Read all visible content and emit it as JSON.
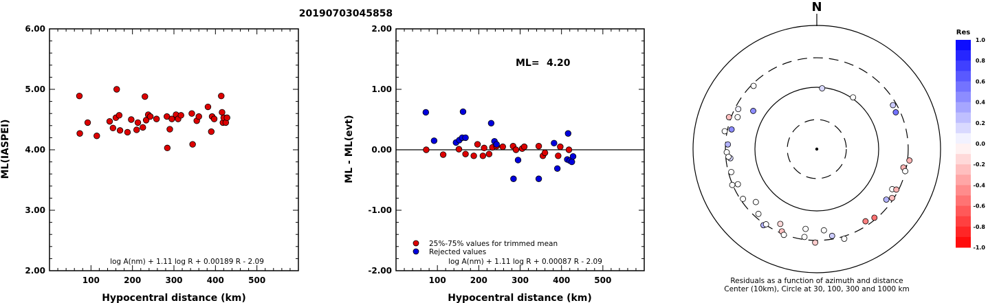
{
  "title": "20190703045858",
  "colors": {
    "red": "#dd0000",
    "blue": "#0000dd",
    "axis": "#000000"
  },
  "chart_data": [
    {
      "type": "scatter",
      "xlabel": "Hypocentral distance (km)",
      "ylabel": "ML(IASPEI)",
      "xlim": [
        0,
        600
      ],
      "ylim": [
        2.0,
        6.0
      ],
      "xticks": [
        "100",
        "200",
        "300",
        "400",
        "500"
      ],
      "yticks": [
        "2.00",
        "3.00",
        "4.00",
        "5.00",
        "6.00"
      ],
      "formula": "log A(nm) + 1.11 log R + 0.00189 R - 2.09",
      "series": [
        {
          "color": "#dd0000",
          "points": [
            [
              72,
              4.89
            ],
            [
              73,
              4.27
            ],
            [
              92,
              4.45
            ],
            [
              114,
              4.23
            ],
            [
              145,
              4.47
            ],
            [
              153,
              4.36
            ],
            [
              160,
              4.53
            ],
            [
              162,
              5.0
            ],
            [
              168,
              4.57
            ],
            [
              170,
              4.32
            ],
            [
              188,
              4.29
            ],
            [
              197,
              4.5
            ],
            [
              210,
              4.33
            ],
            [
              213,
              4.45
            ],
            [
              225,
              4.37
            ],
            [
              230,
              4.88
            ],
            [
              233,
              4.49
            ],
            [
              238,
              4.58
            ],
            [
              243,
              4.55
            ],
            [
              258,
              4.51
            ],
            [
              283,
              4.55
            ],
            [
              284,
              4.03
            ],
            [
              290,
              4.34
            ],
            [
              295,
              4.51
            ],
            [
              305,
              4.58
            ],
            [
              310,
              4.51
            ],
            [
              317,
              4.57
            ],
            [
              343,
              4.6
            ],
            [
              345,
              4.09
            ],
            [
              355,
              4.48
            ],
            [
              360,
              4.55
            ],
            [
              382,
              4.71
            ],
            [
              390,
              4.3
            ],
            [
              392,
              4.55
            ],
            [
              397,
              4.51
            ],
            [
              414,
              4.89
            ],
            [
              416,
              4.62
            ],
            [
              418,
              4.45
            ],
            [
              420,
              4.53
            ],
            [
              425,
              4.45
            ],
            [
              428,
              4.53
            ]
          ]
        }
      ]
    },
    {
      "type": "scatter",
      "xlabel": "Hypocentral distance (km)",
      "ylabel": "ML - ML(evt)",
      "xlim": [
        0,
        600
      ],
      "ylim": [
        -2.0,
        2.0
      ],
      "xticks": [
        "100",
        "200",
        "300",
        "400",
        "500"
      ],
      "yticks": [
        "-2.00",
        "-1.00",
        "0.00",
        "1.00",
        "2.00"
      ],
      "ml_label": "ML=",
      "ml_value": "4.20",
      "formula": "log A(nm) + 1.11 log R + 0.00087 R - 2.09",
      "legend": {
        "placement": "bottom-left",
        "entries": [
          {
            "label": "25%-75% values for trimmed mean",
            "color": "#dd0000"
          },
          {
            "label": "Rejected values",
            "color": "#0000dd"
          }
        ]
      },
      "series": [
        {
          "name": "25%-75% values for trimmed mean",
          "color": "#dd0000",
          "points": [
            [
              73,
              0.0
            ],
            [
              114,
              -0.08
            ],
            [
              152,
              0.01
            ],
            [
              168,
              -0.07
            ],
            [
              188,
              -0.1
            ],
            [
              197,
              0.09
            ],
            [
              210,
              -0.1
            ],
            [
              213,
              0.03
            ],
            [
              225,
              -0.07
            ],
            [
              233,
              0.04
            ],
            [
              243,
              0.06
            ],
            [
              258,
              0.05
            ],
            [
              283,
              0.06
            ],
            [
              290,
              0.0
            ],
            [
              305,
              0.02
            ],
            [
              310,
              0.05
            ],
            [
              345,
              0.06
            ],
            [
              355,
              -0.1
            ],
            [
              360,
              -0.05
            ],
            [
              392,
              -0.1
            ],
            [
              397,
              0.05
            ],
            [
              418,
              0.0
            ]
          ]
        },
        {
          "name": "Rejected values",
          "color": "#0000dd",
          "points": [
            [
              72,
              0.62
            ],
            [
              92,
              0.15
            ],
            [
              145,
              0.12
            ],
            [
              153,
              0.16
            ],
            [
              160,
              0.2
            ],
            [
              162,
              0.63
            ],
            [
              168,
              0.2
            ],
            [
              230,
              0.44
            ],
            [
              238,
              0.14
            ],
            [
              243,
              0.09
            ],
            [
              284,
              -0.48
            ],
            [
              295,
              -0.17
            ],
            [
              345,
              -0.48
            ],
            [
              382,
              0.11
            ],
            [
              390,
              -0.31
            ],
            [
              414,
              -0.16
            ],
            [
              416,
              0.27
            ],
            [
              420,
              -0.18
            ],
            [
              425,
              -0.2
            ],
            [
              428,
              -0.11
            ]
          ]
        }
      ]
    },
    {
      "type": "polar-scatter",
      "north_label": "N",
      "caption_line1": "Residuals as a function of azimuth and distance",
      "caption_line2": "Center (10km), Circle at 30, 100, 300 and 1000 km",
      "colorbar": {
        "title": "Res",
        "ticks": [
          "1.0",
          "0.8",
          "0.6",
          "0.4",
          "0.2",
          "0.0",
          "-0.2",
          "-0.4",
          "-0.6",
          "-0.8",
          "-1.0"
        ]
      },
      "stations": [
        {
          "az": 5,
          "dist": 97,
          "res": 0.15
        },
        {
          "az": 35,
          "dist": 105,
          "res": 0.0
        },
        {
          "az": 301,
          "dist": 158,
          "res": 0.45
        },
        {
          "az": 315,
          "dist": 279,
          "res": 0.0
        },
        {
          "az": 297,
          "dist": 266,
          "res": 0.05
        },
        {
          "az": 292,
          "dist": 240,
          "res": 0.0
        },
        {
          "az": 290,
          "dist": 324,
          "res": -0.25
        },
        {
          "az": 283,
          "dist": 259,
          "res": 0.45
        },
        {
          "az": 281,
          "dist": 328,
          "res": 0.0
        },
        {
          "az": 273,
          "dist": 275,
          "res": 0.3
        },
        {
          "az": 268,
          "dist": 286,
          "res": 0.0
        },
        {
          "az": 264,
          "dist": 254,
          "res": 0.15
        },
        {
          "az": 265,
          "dist": 271,
          "res": 0.0
        },
        {
          "az": 255,
          "dist": 270,
          "res": 0.0
        },
        {
          "az": 246,
          "dist": 249,
          "res": 0.0
        },
        {
          "az": 247,
          "dist": 305,
          "res": 0.0
        },
        {
          "az": 236,
          "dist": 275,
          "res": 0.0
        },
        {
          "az": 229,
          "dist": 202,
          "res": 0.0
        },
        {
          "az": 222,
          "dist": 257,
          "res": 0.0
        },
        {
          "az": 215,
          "dist": 318,
          "res": 0.3
        },
        {
          "az": 214,
          "dist": 293,
          "res": 0.0
        },
        {
          "az": 206,
          "dist": 222,
          "res": -0.15
        },
        {
          "az": 203,
          "dist": 279,
          "res": -0.25
        },
        {
          "az": 201,
          "dist": 306,
          "res": 0.0
        },
        {
          "az": 188,
          "dist": 201,
          "res": 0.0
        },
        {
          "az": 188,
          "dist": 272,
          "res": 0.0
        },
        {
          "az": 181,
          "dist": 325,
          "res": -0.2
        },
        {
          "az": 175,
          "dist": 208,
          "res": 0.0
        },
        {
          "az": 170,
          "dist": 266,
          "res": 0.2
        },
        {
          "az": 163,
          "dist": 328,
          "res": 0.0
        },
        {
          "az": 146,
          "dist": 256,
          "res": -0.5
        },
        {
          "az": 140,
          "dist": 281,
          "res": -0.55
        },
        {
          "az": 126,
          "dist": 245,
          "res": 0.3
        },
        {
          "az": 118,
          "dist": 240,
          "res": 0.0
        },
        {
          "az": 117,
          "dist": 277,
          "res": -0.3
        },
        {
          "az": 123,
          "dist": 282,
          "res": -0.25
        },
        {
          "az": 102,
          "dist": 270,
          "res": -0.3
        },
        {
          "az": 104,
          "dist": 297,
          "res": 0.0
        },
        {
          "az": 97,
          "dist": 322,
          "res": -0.3
        },
        {
          "az": 60,
          "dist": 264,
          "res": 0.2
        },
        {
          "az": 65,
          "dist": 256,
          "res": 0.55
        }
      ]
    }
  ]
}
